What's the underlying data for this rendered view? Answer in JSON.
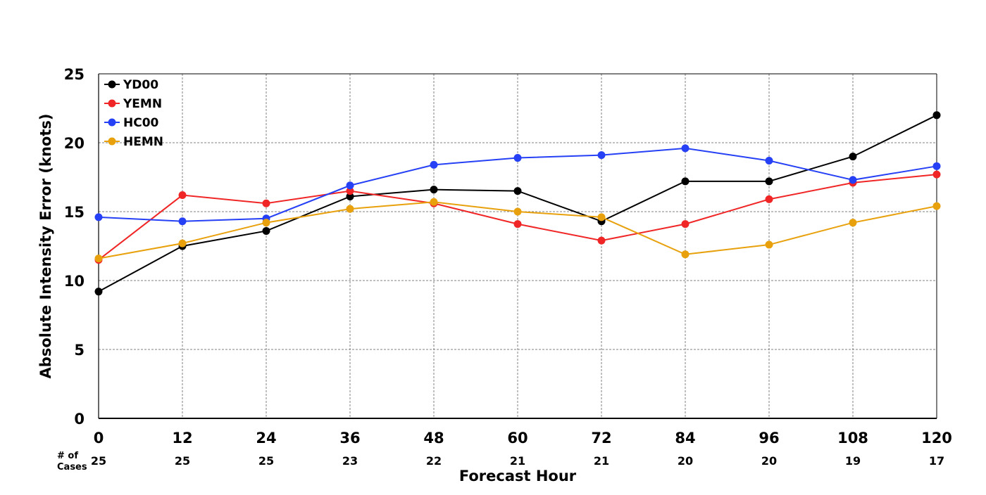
{
  "chart_data": {
    "type": "line",
    "title": "",
    "xlabel": "Forecast Hour",
    "ylabel": "Absolute Intensity Error (knots)",
    "x": [
      0,
      12,
      24,
      36,
      48,
      60,
      72,
      84,
      96,
      108,
      120
    ],
    "xlim": [
      0,
      120
    ],
    "ylim": [
      0,
      25
    ],
    "x_ticks": [
      "0",
      "12",
      "24",
      "36",
      "48",
      "60",
      "72",
      "84",
      "96",
      "108",
      "120"
    ],
    "y_ticks": [
      "0",
      "5",
      "10",
      "15",
      "20",
      "25"
    ],
    "grid": true,
    "legend_position": "top-left",
    "cases_label_line1": "# of",
    "cases_label_line2": "Cases",
    "cases": [
      "25",
      "25",
      "25",
      "23",
      "22",
      "21",
      "21",
      "20",
      "20",
      "19",
      "17"
    ],
    "series": [
      {
        "name": "YD00",
        "color": "#000000",
        "values": [
          9.2,
          12.5,
          13.6,
          16.1,
          16.6,
          16.5,
          14.3,
          17.2,
          17.2,
          19.0,
          22.0
        ]
      },
      {
        "name": "YEMN",
        "color": "#f02626",
        "values": [
          11.5,
          16.2,
          15.6,
          16.5,
          15.6,
          14.1,
          12.9,
          14.1,
          15.9,
          17.1,
          17.7
        ]
      },
      {
        "name": "HC00",
        "color": "#2640f5",
        "values": [
          14.6,
          14.3,
          14.5,
          16.9,
          18.4,
          18.9,
          19.1,
          19.6,
          18.7,
          17.3,
          18.3
        ]
      },
      {
        "name": "HEMN",
        "color": "#e8a10c",
        "values": [
          11.6,
          12.7,
          14.2,
          15.2,
          15.7,
          15.0,
          14.6,
          11.9,
          12.6,
          14.2,
          15.4
        ]
      }
    ]
  }
}
